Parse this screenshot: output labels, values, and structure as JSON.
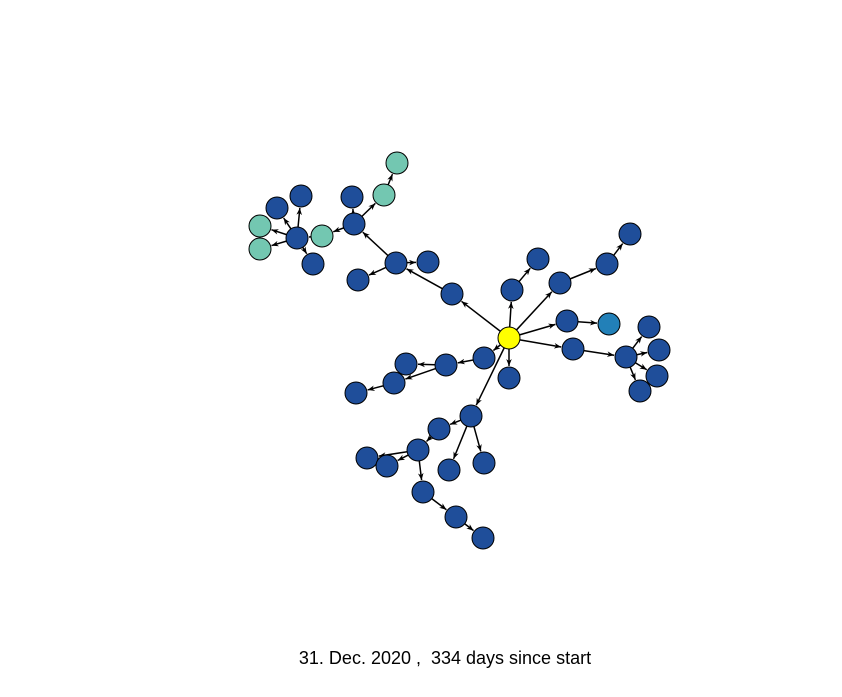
{
  "caption": "31. Dec. 2020 ,  334 days since start",
  "colors": {
    "root": "#ffff00",
    "default": "#1f4e9a",
    "teal": "#73c7b1",
    "blue": "#2280b8",
    "edge": "#000000"
  },
  "graph": {
    "nodes": [
      {
        "id": "n0",
        "group": "root"
      },
      {
        "id": "n1",
        "group": "default"
      },
      {
        "id": "n2",
        "group": "default"
      },
      {
        "id": "n3",
        "group": "default"
      },
      {
        "id": "n4",
        "group": "default"
      },
      {
        "id": "n5",
        "group": "default"
      },
      {
        "id": "n6",
        "group": "default"
      },
      {
        "id": "n7",
        "group": "default"
      },
      {
        "id": "n8",
        "group": "teal"
      },
      {
        "id": "n9",
        "group": "teal"
      },
      {
        "id": "n10",
        "group": "teal"
      },
      {
        "id": "n11",
        "group": "default"
      },
      {
        "id": "n12",
        "group": "default"
      },
      {
        "id": "n13",
        "group": "default"
      },
      {
        "id": "n14",
        "group": "default"
      },
      {
        "id": "n15",
        "group": "default"
      },
      {
        "id": "n16",
        "group": "teal"
      },
      {
        "id": "n17",
        "group": "teal"
      },
      {
        "id": "n18",
        "group": "default"
      },
      {
        "id": "n19",
        "group": "default"
      },
      {
        "id": "n20",
        "group": "default"
      },
      {
        "id": "n21",
        "group": "default"
      },
      {
        "id": "n22",
        "group": "default"
      },
      {
        "id": "n23",
        "group": "default"
      },
      {
        "id": "n24",
        "group": "default"
      },
      {
        "id": "n25",
        "group": "blue"
      },
      {
        "id": "n26",
        "group": "default"
      },
      {
        "id": "n27",
        "group": "default"
      },
      {
        "id": "n28",
        "group": "default"
      },
      {
        "id": "n29",
        "group": "default"
      },
      {
        "id": "n30",
        "group": "default"
      },
      {
        "id": "n31",
        "group": "default"
      },
      {
        "id": "n32",
        "group": "default"
      },
      {
        "id": "n33",
        "group": "default"
      },
      {
        "id": "n34",
        "group": "default"
      },
      {
        "id": "n35",
        "group": "default"
      },
      {
        "id": "n36",
        "group": "default"
      },
      {
        "id": "n37",
        "group": "default"
      },
      {
        "id": "n38",
        "group": "default"
      },
      {
        "id": "n39",
        "group": "default"
      },
      {
        "id": "n40",
        "group": "default"
      },
      {
        "id": "n41",
        "group": "default"
      },
      {
        "id": "n42",
        "group": "default"
      },
      {
        "id": "n43",
        "group": "default"
      },
      {
        "id": "n44",
        "group": "default"
      },
      {
        "id": "n45",
        "group": "default"
      },
      {
        "id": "n46",
        "group": "default"
      },
      {
        "id": "n47",
        "group": "default"
      }
    ],
    "edges": [
      [
        "n0",
        "n1"
      ],
      [
        "n1",
        "n2"
      ],
      [
        "n2",
        "n3"
      ],
      [
        "n2",
        "n4"
      ],
      [
        "n3",
        "n5"
      ],
      [
        "n5",
        "n6"
      ],
      [
        "n6",
        "n7"
      ],
      [
        "n6",
        "n8"
      ],
      [
        "n8",
        "n9"
      ],
      [
        "n8",
        "n10"
      ],
      [
        "n6",
        "n11"
      ],
      [
        "n6",
        "n12"
      ],
      [
        "n5",
        "n13"
      ],
      [
        "n5",
        "n14"
      ],
      [
        "n5",
        "n15"
      ],
      [
        "n15",
        "n16"
      ],
      [
        "n16",
        "n17"
      ],
      [
        "n0",
        "n18"
      ],
      [
        "n18",
        "n19"
      ],
      [
        "n0",
        "n20"
      ],
      [
        "n20",
        "n21"
      ],
      [
        "n21",
        "n22"
      ],
      [
        "n0",
        "n23"
      ],
      [
        "n23",
        "n24"
      ],
      [
        "n24",
        "n25"
      ],
      [
        "n0",
        "n26"
      ],
      [
        "n26",
        "n27"
      ],
      [
        "n27",
        "n28"
      ],
      [
        "n27",
        "n29"
      ],
      [
        "n27",
        "n30"
      ],
      [
        "n27",
        "n31"
      ],
      [
        "n0",
        "n32"
      ],
      [
        "n0",
        "n33"
      ],
      [
        "n33",
        "n34"
      ],
      [
        "n34",
        "n35"
      ],
      [
        "n35",
        "n36"
      ],
      [
        "n35",
        "n37"
      ],
      [
        "n0",
        "n38"
      ],
      [
        "n38",
        "n39"
      ],
      [
        "n39",
        "n40"
      ],
      [
        "n39",
        "n41"
      ],
      [
        "n39",
        "n42"
      ],
      [
        "n42",
        "n43"
      ],
      [
        "n42",
        "n44"
      ],
      [
        "n42",
        "n45"
      ],
      [
        "n45",
        "n46"
      ],
      [
        "n46",
        "n47"
      ]
    ]
  }
}
